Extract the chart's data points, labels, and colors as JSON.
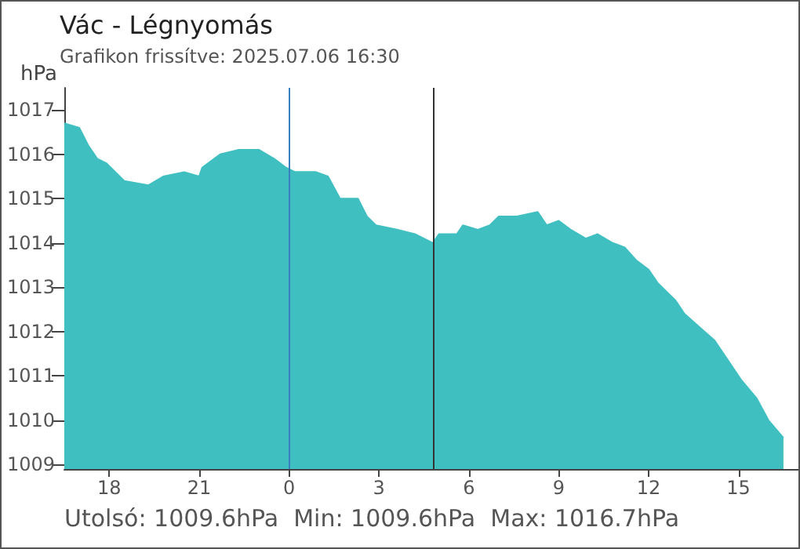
{
  "chart_data": {
    "type": "area",
    "title": "Vác - Légnyomás",
    "subtitle": "Grafikon frissítve: 2025.07.06 16:30",
    "ylabel": "hPa",
    "annotations": [
      "Utolsó: 1009.6hPa  Min: 1009.6hPa  Max: 1016.7hPa"
    ],
    "x": [
      "2025-07-05T16:30",
      "2025-07-05T17:00",
      "2025-07-05T17:18",
      "2025-07-05T17:36",
      "2025-07-05T17:54",
      "2025-07-05T18:30",
      "2025-07-05T19:18",
      "2025-07-05T19:48",
      "2025-07-05T20:30",
      "2025-07-05T21:00",
      "2025-07-05T21:06",
      "2025-07-05T21:42",
      "2025-07-05T22:18",
      "2025-07-05T23:00",
      "2025-07-05T23:30",
      "2025-07-05T23:54",
      "2025-07-06T00:12",
      "2025-07-06T00:54",
      "2025-07-06T01:18",
      "2025-07-06T01:42",
      "2025-07-06T02:18",
      "2025-07-06T02:36",
      "2025-07-06T02:54",
      "2025-07-06T03:36",
      "2025-07-06T04:12",
      "2025-07-06T04:48",
      "2025-07-06T05:00",
      "2025-07-06T05:36",
      "2025-07-06T05:48",
      "2025-07-06T06:18",
      "2025-07-06T06:42",
      "2025-07-06T07:00",
      "2025-07-06T07:36",
      "2025-07-06T08:18",
      "2025-07-06T08:36",
      "2025-07-06T09:00",
      "2025-07-06T09:24",
      "2025-07-06T09:54",
      "2025-07-06T10:18",
      "2025-07-06T10:48",
      "2025-07-06T11:12",
      "2025-07-06T11:36",
      "2025-07-06T12:00",
      "2025-07-06T12:18",
      "2025-07-06T12:54",
      "2025-07-06T13:12",
      "2025-07-06T13:42",
      "2025-07-06T14:12",
      "2025-07-06T14:42",
      "2025-07-06T15:06",
      "2025-07-06T15:36",
      "2025-07-06T16:00",
      "2025-07-06T16:30"
    ],
    "series": [
      {
        "color": "#40bfc1",
        "values": [
          1016.7,
          1016.6,
          1016.2,
          1015.9,
          1015.8,
          1015.4,
          1015.3,
          1015.5,
          1015.6,
          1015.5,
          1015.7,
          1016,
          1016.1,
          1016.1,
          1015.9,
          1015.7,
          1015.6,
          1015.6,
          1015.5,
          1015,
          1015,
          1014.6,
          1014.4,
          1014.3,
          1014.2,
          1014,
          1014.2,
          1014.2,
          1014.4,
          1014.3,
          1014.4,
          1014.6,
          1014.6,
          1014.7,
          1014.4,
          1014.5,
          1014.3,
          1014.1,
          1014.2,
          1014,
          1013.9,
          1013.6,
          1013.4,
          1013.1,
          1012.7,
          1012.4,
          1012.1,
          1011.8,
          1011.3,
          1010.9,
          1010.5,
          1010,
          1009.6
        ]
      }
    ],
    "xlim": [
      "2025-07-05T16:30",
      "2025-07-06T17:00"
    ],
    "ylim": [
      1008.9,
      1017.5
    ],
    "xticks": [
      {
        "value": "2025-07-05T18:00",
        "label": "18"
      },
      {
        "value": "2025-07-05T21:00",
        "label": "21"
      },
      {
        "value": "2025-07-06T00:00",
        "label": "0"
      },
      {
        "value": "2025-07-06T03:00",
        "label": "3"
      },
      {
        "value": "2025-07-06T06:00",
        "label": "6"
      },
      {
        "value": "2025-07-06T09:00",
        "label": "9"
      },
      {
        "value": "2025-07-06T12:00",
        "label": "12"
      },
      {
        "value": "2025-07-06T15:00",
        "label": "15"
      }
    ],
    "yticks": [
      1009,
      1010,
      1011,
      1012,
      1013,
      1014,
      1015,
      1016,
      1017
    ],
    "ref_lines": [
      {
        "axis": "x",
        "value": "2025-07-06T00:00",
        "color": "#3a7fc0"
      },
      {
        "axis": "x",
        "value": "2025-07-06T04:48",
        "color": "#333333"
      }
    ],
    "grid": false,
    "marker": "none"
  }
}
